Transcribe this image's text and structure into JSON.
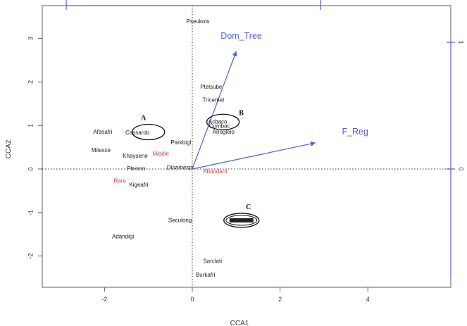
{
  "chart_data": {
    "type": "scatter",
    "xlabel": "CCA1",
    "ylabel": "CCA2",
    "xlim": [
      -3.4,
      5.8
    ],
    "ylim": [
      -2.7,
      3.55
    ],
    "x_ticks": [
      -2,
      0,
      2,
      4
    ],
    "y_ticks": [
      -2,
      -1,
      0,
      1,
      2,
      3
    ],
    "right_ticks": [
      0,
      1
    ],
    "grid": false,
    "reference_lines": {
      "x": 0,
      "y": 0,
      "style": "dotted"
    },
    "colors": {
      "species": "#1a1a1a",
      "highlight": "#d64040",
      "vector": "#5060dd",
      "frame": "#5c5c5c"
    },
    "species": [
      {
        "name": "Pseukots",
        "x": 0.13,
        "y": 3.38,
        "color": "black"
      },
      {
        "name": "Ptelsube",
        "x": 0.43,
        "y": 1.88,
        "color": "black"
      },
      {
        "name": "Tricemet",
        "x": 0.48,
        "y": 1.58,
        "color": "black"
      },
      {
        "name": "Acbaco",
        "x": 0.58,
        "y": 1.08,
        "color": "black"
      },
      {
        "name": "Combac",
        "x": 0.62,
        "y": 0.98,
        "color": "black"
      },
      {
        "name": "Anogleio",
        "x": 0.71,
        "y": 0.84,
        "color": "black"
      },
      {
        "name": "Afzeafri",
        "x": -2.04,
        "y": 0.84,
        "color": "black"
      },
      {
        "name": "Cassarob",
        "x": -1.25,
        "y": 0.83,
        "color": "black"
      },
      {
        "name": "Parkbigl",
        "x": -0.26,
        "y": 0.6,
        "color": "black"
      },
      {
        "name": "Milexce",
        "x": -2.08,
        "y": 0.42,
        "color": "black"
      },
      {
        "name": "Khaysene",
        "x": -1.3,
        "y": 0.29,
        "color": "black"
      },
      {
        "name": "Middle",
        "x": -0.72,
        "y": 0.34,
        "color": "red"
      },
      {
        "name": "Pterern",
        "x": -1.28,
        "y": 0.0,
        "color": "black"
      },
      {
        "name": "Dioamesp",
        "x": -0.29,
        "y": 0.03,
        "color": "black"
      },
      {
        "name": "Abundant",
        "x": 0.52,
        "y": -0.06,
        "color": "red"
      },
      {
        "name": "Rare",
        "x": -1.65,
        "y": -0.28,
        "color": "red"
      },
      {
        "name": "Kigeafri",
        "x": -1.22,
        "y": -0.37,
        "color": "black"
      },
      {
        "name": "Seculong",
        "x": -0.28,
        "y": -1.19,
        "color": "black"
      },
      {
        "name": "Adandigi",
        "x": -1.58,
        "y": -1.56,
        "color": "black"
      },
      {
        "name": "Sarclati",
        "x": 0.46,
        "y": -2.13,
        "color": "black"
      },
      {
        "name": "Burkafri",
        "x": 0.3,
        "y": -2.44,
        "color": "black"
      }
    ],
    "vectors": [
      {
        "name": "Dom_Tree",
        "x": 1.0,
        "y": 2.7
      },
      {
        "name": "F_Reg",
        "x": 2.8,
        "y": 0.6
      }
    ],
    "groups": [
      {
        "label": "A",
        "cx": -1.0,
        "cy": 0.85
      },
      {
        "label": "B",
        "cx": 0.7,
        "cy": 1.08
      },
      {
        "label": "C",
        "cx": 1.12,
        "cy": -1.18
      }
    ]
  }
}
